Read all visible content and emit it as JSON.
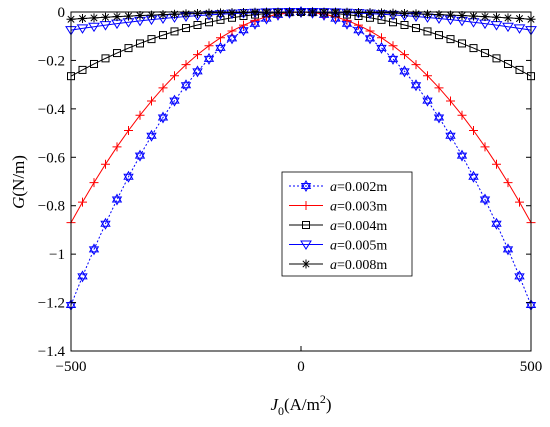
{
  "chart_data": {
    "type": "line",
    "xlabel_main": "J",
    "xlabel_sub": "0",
    "xlabel_unit_pre": "(A/m",
    "xlabel_unit_sup": "2",
    "xlabel_unit_post": ")",
    "ylabel_main": "G",
    "ylabel_unit": "(N/m)",
    "xlim": [
      -500,
      500
    ],
    "ylim": [
      -1.4,
      0
    ],
    "xticks": [
      -500,
      0,
      500
    ],
    "xtick_labels": [
      "−500",
      "0",
      "500"
    ],
    "yticks": [
      0,
      -0.2,
      -0.4,
      -0.6,
      -0.8,
      -1,
      -1.2,
      -1.4
    ],
    "ytick_labels": [
      "0",
      "−0.2",
      "−0.4",
      "−0.6",
      "−0.8",
      "−1",
      "−1.2",
      "−1.4"
    ],
    "grid": false,
    "legend_position": "center-right",
    "x": [
      -500,
      -475,
      -450,
      -425,
      -400,
      -375,
      -350,
      -325,
      -300,
      -275,
      -250,
      -225,
      -200,
      -175,
      -150,
      -125,
      -100,
      -75,
      -50,
      -25,
      0,
      25,
      50,
      75,
      100,
      125,
      150,
      175,
      200,
      225,
      250,
      275,
      300,
      325,
      350,
      375,
      400,
      425,
      450,
      475,
      500
    ],
    "series": [
      {
        "name_var": "a",
        "name_rest": "=0.002m",
        "color": "#0000ff",
        "dash": "2,2",
        "marker": "hexagram",
        "peak": -1.21
      },
      {
        "name_var": "a",
        "name_rest": "=0.003m",
        "color": "#ff0000",
        "dash": "",
        "marker": "plus",
        "peak": -0.87
      },
      {
        "name_var": "a",
        "name_rest": "=0.004m",
        "color": "#000000",
        "dash": "",
        "marker": "square",
        "peak": -0.265
      },
      {
        "name_var": "a",
        "name_rest": "=0.005m",
        "color": "#0000ff",
        "dash": "",
        "marker": "triangle-down",
        "peak": -0.075
      },
      {
        "name_var": "a",
        "name_rest": "=0.008m",
        "color": "#000000",
        "dash": "",
        "marker": "asterisk",
        "peak": -0.03
      }
    ]
  }
}
